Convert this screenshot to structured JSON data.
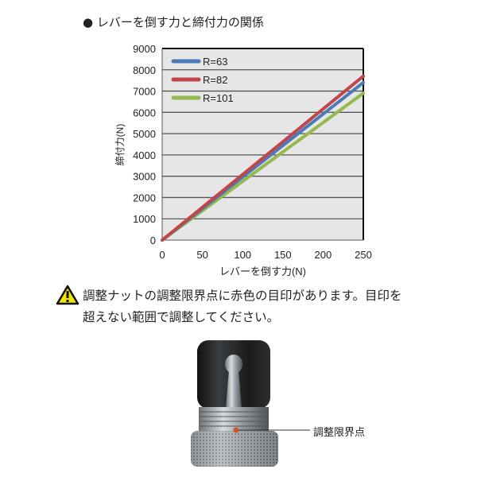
{
  "title": "● レバーを倒す力と締付力の関係",
  "warning": {
    "icon": "warning-triangle-icon",
    "line1": "調整ナットの調整限界点に赤色の目印があります。目印を",
    "line2": "超えない範囲で調整してください。"
  },
  "photo": {
    "callout_label": "調整限界点"
  },
  "chart_data": {
    "type": "line",
    "xlabel": "レバーを倒す力(N)",
    "ylabel": "締付力(N)",
    "xlim": [
      0,
      250
    ],
    "ylim": [
      0,
      9000
    ],
    "xticks": [
      0,
      50,
      100,
      150,
      200,
      250
    ],
    "yticks": [
      0,
      1000,
      2000,
      3000,
      4000,
      5000,
      6000,
      7000,
      8000,
      9000
    ],
    "grid": "horizontal",
    "legend_placement": "top-left",
    "series": [
      {
        "name": "R=63",
        "color": "#4a7bb7",
        "x": [
          0,
          250
        ],
        "y": [
          0,
          7400
        ]
      },
      {
        "name": "R=82",
        "color": "#c0464a",
        "x": [
          0,
          250
        ],
        "y": [
          0,
          7700
        ]
      },
      {
        "name": "R=101",
        "color": "#94b94d",
        "x": [
          0,
          250
        ],
        "y": [
          0,
          6900
        ]
      }
    ]
  }
}
